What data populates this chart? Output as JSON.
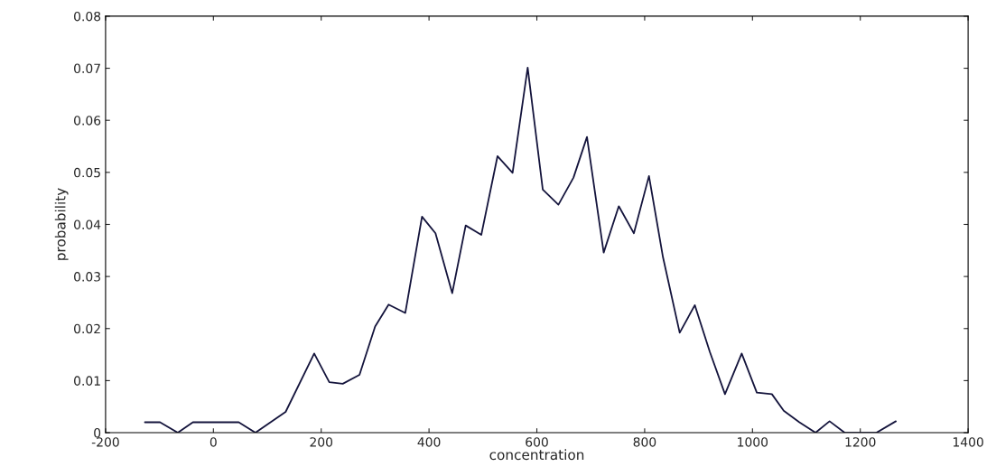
{
  "chart_data": {
    "type": "line",
    "xlabel": "concentration",
    "ylabel": "probability",
    "x": [
      -127,
      -99,
      -66,
      -38,
      13,
      47,
      78,
      134,
      187,
      215,
      240,
      271,
      300,
      325,
      356,
      387,
      412,
      443,
      468,
      497,
      527,
      555,
      583,
      611,
      640,
      668,
      693,
      724,
      752,
      780,
      808,
      834,
      865,
      893,
      921,
      949,
      980,
      1008,
      1036,
      1058,
      1087,
      1117,
      1143,
      1171,
      1199,
      1230,
      1266
    ],
    "series": [
      {
        "color": "#14143c",
        "values": [
          0.002,
          0.002,
          0,
          0.002,
          0.002,
          0.002,
          0,
          0.004,
          0.0152,
          0.0097,
          0.0094,
          0.0111,
          0.0204,
          0.0246,
          0.023,
          0.0415,
          0.0383,
          0.0268,
          0.0398,
          0.038,
          0.0531,
          0.0499,
          0.0701,
          0.0467,
          0.0438,
          0.049,
          0.0568,
          0.0346,
          0.0435,
          0.0383,
          0.0493,
          0.0337,
          0.0192,
          0.0245,
          0.0155,
          0.0074,
          0.0152,
          0.0077,
          0.0074,
          0.0042,
          0.002,
          0,
          0.0022,
          0,
          0,
          0,
          0.0022
        ]
      }
    ],
    "xlim": [
      -200,
      1400
    ],
    "xticks": [
      -200,
      0,
      200,
      400,
      600,
      800,
      1000,
      1200,
      1400
    ],
    "ylim": [
      0,
      0.08
    ],
    "yticks": [
      0,
      0.01,
      0.02,
      0.03,
      0.04,
      0.05,
      0.06,
      0.07,
      0.08
    ],
    "grid": false,
    "marker": "none",
    "line_style": "solid"
  }
}
